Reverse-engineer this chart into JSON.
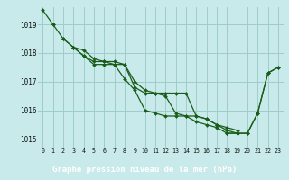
{
  "title": "Graphe pression niveau de la mer (hPa)",
  "background_color": "#c8eaea",
  "grid_color": "#a0cccc",
  "line_color": "#1a5c1a",
  "marker_color": "#1a5c1a",
  "label_bg": "#2a6e2a",
  "label_fg": "#ffffff",
  "xlim": [
    -0.5,
    23.5
  ],
  "ylim": [
    1014.7,
    1019.6
  ],
  "yticks": [
    1015,
    1016,
    1017,
    1018,
    1019
  ],
  "xticks": [
    0,
    1,
    2,
    3,
    4,
    5,
    6,
    7,
    8,
    9,
    10,
    11,
    12,
    13,
    14,
    15,
    16,
    17,
    18,
    19,
    20,
    21,
    22,
    23
  ],
  "series": [
    [
      1019.5,
      1019.0,
      null,
      null,
      null,
      null,
      null,
      null,
      null,
      null,
      null,
      null,
      null,
      null,
      null,
      null,
      null,
      null,
      null,
      null,
      null,
      null,
      null,
      null
    ],
    [
      null,
      1019.0,
      1018.5,
      1018.2,
      1017.9,
      1017.6,
      1017.6,
      1017.6,
      1017.1,
      1016.7,
      1016.0,
      1015.9,
      1015.8,
      1015.8,
      1015.8,
      1015.6,
      1015.5,
      1015.4,
      1015.2,
      1015.2,
      null,
      null,
      null,
      null
    ],
    [
      null,
      null,
      1018.5,
      1018.2,
      1017.9,
      1017.7,
      1017.7,
      1017.6,
      1017.6,
      1016.8,
      1016.6,
      1016.6,
      1016.6,
      1016.6,
      1016.6,
      1015.8,
      1015.7,
      1015.5,
      1015.4,
      1015.3,
      null,
      null,
      null,
      null
    ],
    [
      null,
      null,
      null,
      1018.2,
      1018.1,
      1017.8,
      1017.7,
      1017.7,
      1017.6,
      1017.0,
      1016.7,
      1016.6,
      1016.5,
      1015.9,
      1015.8,
      1015.8,
      1015.7,
      1015.5,
      1015.3,
      1015.2,
      1015.2,
      1015.9,
      1017.3,
      1017.5
    ],
    [
      null,
      null,
      null,
      null,
      null,
      null,
      null,
      null,
      null,
      null,
      null,
      null,
      null,
      null,
      null,
      null,
      null,
      null,
      1015.2,
      1015.2,
      1015.2,
      1015.9,
      1017.3,
      1017.5
    ]
  ]
}
